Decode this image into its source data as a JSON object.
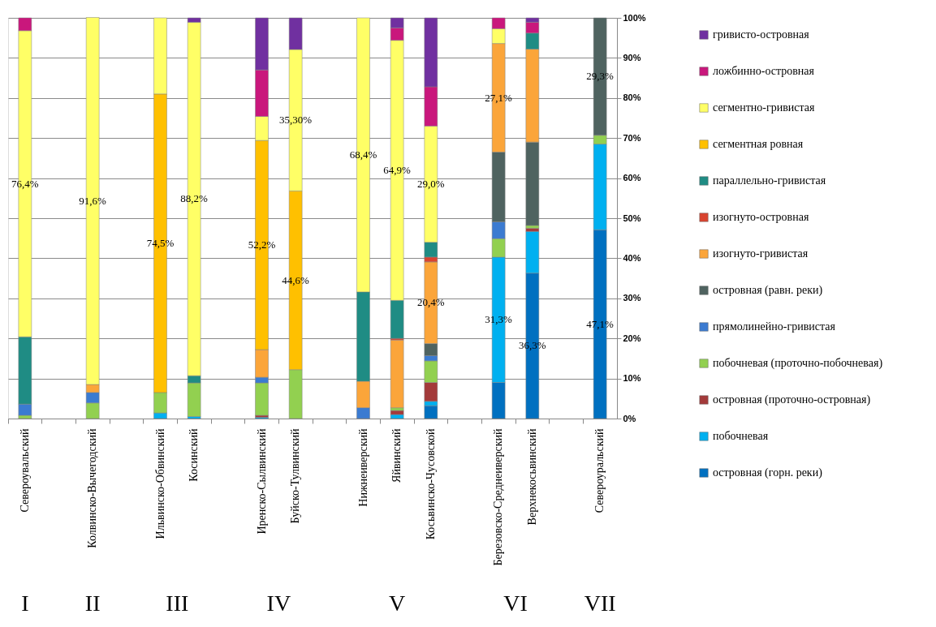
{
  "chart_data": {
    "type": "bar",
    "stacked": true,
    "categories": [
      "Североувальский",
      null,
      "Колвинско-Вычегодский",
      null,
      "Ильвинско-Обвинский",
      "Косинский",
      null,
      "Иренско-Сылвинский",
      "Буйско-Тулвинский",
      null,
      "Нижнеиверский",
      "Яйвинский",
      "Косьвинско-Чусовской",
      null,
      "Березовско-Среднеиверский",
      "Верхнекосьвинский",
      null,
      "Североуральский"
    ],
    "series": [
      {
        "name": "островная (горн. реки)",
        "color": "#0070c0",
        "values": [
          null,
          null,
          null,
          null,
          null,
          null,
          null,
          null,
          null,
          null,
          null,
          null,
          3.2,
          null,
          9.0,
          36.3,
          null,
          47.1
        ],
        "value_labels": [
          null,
          null,
          null,
          null,
          null,
          null,
          null,
          null,
          null,
          null,
          null,
          null,
          null,
          null,
          null,
          "36,3%",
          null,
          "47,1%"
        ]
      },
      {
        "name": "побочневая",
        "color": "#00b0f0",
        "values": [
          null,
          null,
          null,
          null,
          1.4,
          0.5,
          null,
          0.3,
          null,
          null,
          null,
          1.0,
          1.1,
          null,
          31.3,
          10.4,
          null,
          21.4
        ],
        "value_labels": [
          null,
          null,
          null,
          null,
          null,
          null,
          null,
          null,
          null,
          null,
          null,
          null,
          null,
          null,
          "31,3%",
          null,
          null,
          null
        ]
      },
      {
        "name": "островная (проточно-островная)",
        "color": "#a33a3a",
        "values": [
          null,
          null,
          null,
          null,
          null,
          null,
          null,
          0.5,
          null,
          null,
          null,
          1.0,
          4.7,
          null,
          null,
          0.8,
          null,
          null
        ]
      },
      {
        "name": "побочневая (проточно-побочневая)",
        "color": "#92d050",
        "values": [
          0.8,
          null,
          3.9,
          null,
          5.1,
          8.4,
          null,
          8.1,
          12.2,
          null,
          null,
          0.7,
          5.4,
          null,
          4.6,
          0.7,
          null,
          2.2
        ]
      },
      {
        "name": "прямолинейно-гривистая",
        "color": "#3b7bd1",
        "values": [
          2.8,
          null,
          2.6,
          null,
          null,
          null,
          null,
          1.4,
          null,
          null,
          2.7,
          null,
          1.3,
          null,
          4.2,
          null,
          null,
          null
        ]
      },
      {
        "name": "островная (равн. реки)",
        "color": "#4f6360",
        "values": [
          null,
          null,
          null,
          null,
          null,
          null,
          null,
          null,
          null,
          null,
          null,
          null,
          3.0,
          null,
          17.4,
          20.8,
          null,
          29.3
        ],
        "value_labels": [
          null,
          null,
          null,
          null,
          null,
          null,
          null,
          null,
          null,
          null,
          null,
          null,
          null,
          null,
          null,
          null,
          null,
          "29,3%"
        ]
      },
      {
        "name": "изогнуто-гривистая",
        "color": "#fba53a",
        "values": [
          null,
          null,
          2.0,
          null,
          null,
          null,
          null,
          6.9,
          null,
          null,
          6.6,
          16.9,
          20.4,
          null,
          27.1,
          23.2,
          null,
          null
        ],
        "value_labels": [
          null,
          null,
          null,
          null,
          null,
          null,
          null,
          null,
          null,
          null,
          null,
          null,
          "20,4%",
          null,
          "27,1%",
          null,
          null,
          null
        ]
      },
      {
        "name": "изогнуто-островная",
        "color": "#d9432f",
        "values": [
          null,
          null,
          null,
          null,
          null,
          null,
          null,
          null,
          null,
          null,
          null,
          0.4,
          1.2,
          null,
          null,
          null,
          null,
          null
        ]
      },
      {
        "name": "параллельно-гривистая",
        "color": "#1f8c84",
        "values": [
          16.8,
          null,
          null,
          null,
          null,
          1.8,
          null,
          null,
          null,
          null,
          22.3,
          9.5,
          3.7,
          null,
          null,
          4.0,
          null,
          null
        ]
      },
      {
        "name": "сегментная ровная",
        "color": "#ffc000",
        "values": [
          null,
          null,
          null,
          null,
          74.5,
          null,
          null,
          52.2,
          44.6,
          null,
          null,
          null,
          null,
          null,
          null,
          null,
          null,
          null
        ],
        "value_labels": [
          null,
          null,
          null,
          null,
          "74,5%",
          null,
          null,
          "52,2%",
          "44,6%",
          null,
          null,
          null,
          null,
          null,
          null,
          null,
          null,
          null
        ]
      },
      {
        "name": "сегментно-гривистая",
        "color": "#ffff66",
        "values": [
          76.4,
          null,
          91.6,
          null,
          19.0,
          88.2,
          null,
          6.0,
          35.3,
          null,
          68.4,
          64.9,
          29.0,
          null,
          3.7,
          null,
          null,
          null
        ],
        "value_labels": [
          "76,4%",
          null,
          "91,6%",
          null,
          null,
          "88,2%",
          null,
          null,
          "35,30%",
          null,
          "68,4%",
          "64,9%",
          "29,0%",
          null,
          null,
          null,
          null,
          null
        ]
      },
      {
        "name": "ложбинно-островная",
        "color": "#c9177c",
        "values": [
          3.2,
          null,
          null,
          null,
          null,
          null,
          null,
          11.6,
          null,
          null,
          null,
          3.1,
          9.8,
          null,
          2.7,
          2.7,
          null,
          null
        ]
      },
      {
        "name": "гривисто-островная",
        "color": "#7030a0",
        "values": [
          null,
          null,
          null,
          null,
          null,
          1.1,
          null,
          13.0,
          7.9,
          null,
          null,
          2.5,
          17.2,
          null,
          null,
          1.1,
          null,
          null
        ]
      }
    ],
    "ylim": [
      0,
      100
    ],
    "yticks": [
      {
        "value": 0,
        "label": "0%"
      },
      {
        "value": 10,
        "label": "10%"
      },
      {
        "value": 20,
        "label": "20%"
      },
      {
        "value": 30,
        "label": "30%"
      },
      {
        "value": 40,
        "label": "40%"
      },
      {
        "value": 50,
        "label": "50%"
      },
      {
        "value": 60,
        "label": "60%"
      },
      {
        "value": 70,
        "label": "70%"
      },
      {
        "value": 80,
        "label": "80%"
      },
      {
        "value": 90,
        "label": "90%"
      },
      {
        "value": 100,
        "label": "100%"
      }
    ],
    "grid": "y",
    "legend": "right",
    "annotations": [
      "I",
      "II",
      "III",
      "IV",
      "V",
      "VI",
      "VII"
    ]
  }
}
